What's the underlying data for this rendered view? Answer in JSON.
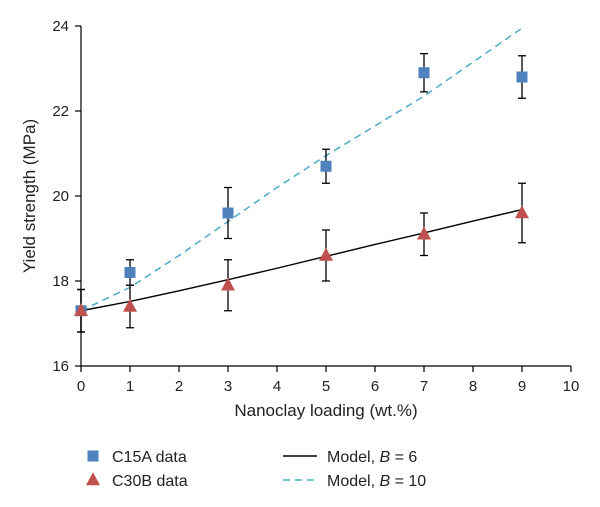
{
  "chart_data": {
    "type": "scatter",
    "xlabel": "Nanoclay loading (wt.%)",
    "ylabel": "Yield strength (MPa)",
    "xlim": [
      0,
      10
    ],
    "ylim": [
      16,
      24
    ],
    "x_ticks": [
      0,
      1,
      2,
      3,
      4,
      5,
      6,
      7,
      8,
      9,
      10
    ],
    "y_ticks": [
      16,
      18,
      20,
      22,
      24
    ],
    "grid": false,
    "legend_position": "bottom",
    "series": [
      {
        "name": "C15A data",
        "kind": "points",
        "marker": "square",
        "color": "#4f81bd",
        "x": [
          0,
          1,
          3,
          5,
          7,
          9
        ],
        "y": [
          17.3,
          18.2,
          19.6,
          20.7,
          22.9,
          22.8
        ],
        "err": [
          0.5,
          0.3,
          0.6,
          0.4,
          0.45,
          0.5
        ]
      },
      {
        "name": "C30B data",
        "kind": "points",
        "marker": "triangle",
        "color": "#c0504d",
        "x": [
          0,
          1,
          3,
          5,
          7,
          9
        ],
        "y": [
          17.3,
          17.4,
          17.9,
          18.6,
          19.1,
          19.6
        ],
        "err": [
          0.5,
          0.5,
          0.6,
          0.6,
          0.5,
          0.7
        ]
      },
      {
        "name_prefix": "Model, ",
        "name_var": "B",
        "name_suffix": " = 6",
        "kind": "line",
        "style": "solid",
        "color": "#000000",
        "x": [
          0,
          1,
          2,
          3,
          4,
          5,
          6,
          7,
          8,
          9
        ],
        "y": [
          17.3,
          17.52,
          17.77,
          18.03,
          18.3,
          18.58,
          18.86,
          19.13,
          19.41,
          19.68
        ]
      },
      {
        "name_prefix": "Model, ",
        "name_var": "B",
        "name_suffix": " = 10",
        "kind": "line",
        "style": "dashed",
        "color": "#4bacc6",
        "x": [
          0,
          1,
          2,
          3,
          4,
          5,
          6,
          7,
          8,
          9
        ],
        "y": [
          17.3,
          17.85,
          18.6,
          19.4,
          20.2,
          20.95,
          21.65,
          22.35,
          23.15,
          23.95
        ]
      }
    ]
  }
}
